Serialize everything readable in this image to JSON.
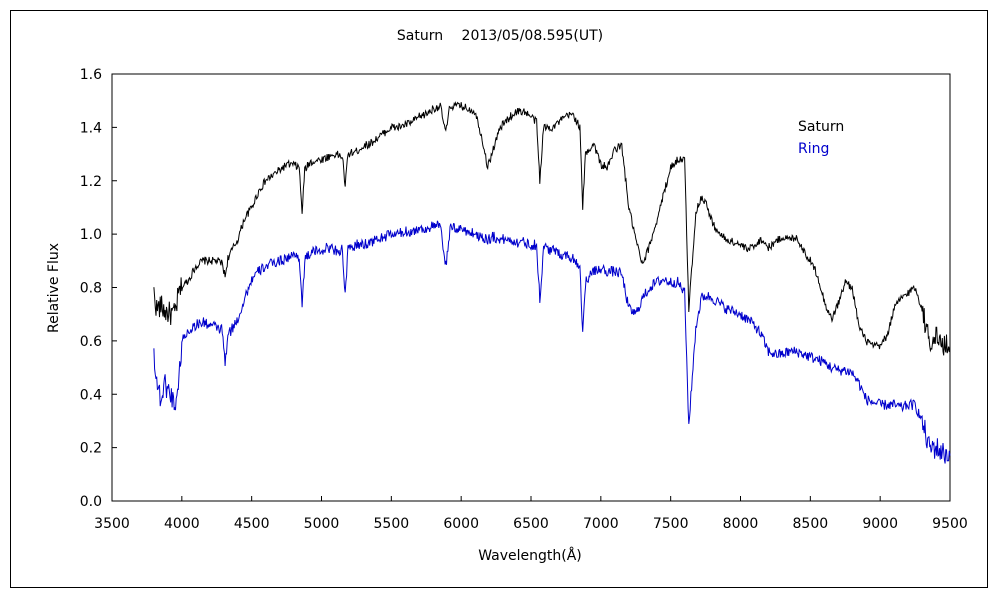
{
  "chart_data": {
    "type": "line",
    "title": "Saturn　 2013/05/08.595(UT)",
    "xlabel": "Wavelength(Å)",
    "ylabel": "Relative Flux",
    "xlim": [
      3500,
      9500
    ],
    "ylim": [
      0.0,
      1.6
    ],
    "xticks": [
      "3500",
      "4000",
      "4500",
      "5000",
      "5500",
      "6000",
      "6500",
      "7000",
      "7500",
      "8000",
      "8500",
      "9000",
      "9500"
    ],
    "yticks": [
      "0.0",
      "0.2",
      "0.4",
      "0.6",
      "0.8",
      "1.0",
      "1.2",
      "1.4",
      "1.6"
    ],
    "grid": false,
    "legend_position": "top-right",
    "series": [
      {
        "name": "Saturn",
        "color": "#000000",
        "points": [
          [
            3800,
            0.78
          ],
          [
            3820,
            0.72
          ],
          [
            3850,
            0.73
          ],
          [
            3880,
            0.71
          ],
          [
            3920,
            0.7
          ],
          [
            3950,
            0.7
          ],
          [
            3980,
            0.78
          ],
          [
            4000,
            0.8
          ],
          [
            4050,
            0.83
          ],
          [
            4100,
            0.88
          ],
          [
            4150,
            0.9
          ],
          [
            4200,
            0.9
          ],
          [
            4250,
            0.9
          ],
          [
            4290,
            0.89
          ],
          [
            4310,
            0.84
          ],
          [
            4330,
            0.91
          ],
          [
            4400,
            0.98
          ],
          [
            4450,
            1.06
          ],
          [
            4500,
            1.1
          ],
          [
            4550,
            1.16
          ],
          [
            4600,
            1.2
          ],
          [
            4650,
            1.22
          ],
          [
            4700,
            1.24
          ],
          [
            4750,
            1.26
          ],
          [
            4800,
            1.26
          ],
          [
            4840,
            1.25
          ],
          [
            4861,
            1.08
          ],
          [
            4880,
            1.24
          ],
          [
            4920,
            1.27
          ],
          [
            5000,
            1.28
          ],
          [
            5050,
            1.29
          ],
          [
            5100,
            1.3
          ],
          [
            5150,
            1.29
          ],
          [
            5170,
            1.18
          ],
          [
            5190,
            1.3
          ],
          [
            5250,
            1.31
          ],
          [
            5300,
            1.33
          ],
          [
            5350,
            1.34
          ],
          [
            5400,
            1.36
          ],
          [
            5450,
            1.38
          ],
          [
            5500,
            1.4
          ],
          [
            5550,
            1.4
          ],
          [
            5600,
            1.41
          ],
          [
            5650,
            1.42
          ],
          [
            5700,
            1.44
          ],
          [
            5750,
            1.45
          ],
          [
            5800,
            1.47
          ],
          [
            5850,
            1.48
          ],
          [
            5890,
            1.38
          ],
          [
            5920,
            1.48
          ],
          [
            6000,
            1.48
          ],
          [
            6050,
            1.47
          ],
          [
            6100,
            1.46
          ],
          [
            6150,
            1.36
          ],
          [
            6190,
            1.25
          ],
          [
            6230,
            1.32
          ],
          [
            6280,
            1.4
          ],
          [
            6350,
            1.44
          ],
          [
            6400,
            1.46
          ],
          [
            6450,
            1.46
          ],
          [
            6500,
            1.44
          ],
          [
            6540,
            1.42
          ],
          [
            6563,
            1.2
          ],
          [
            6590,
            1.4
          ],
          [
            6650,
            1.4
          ],
          [
            6700,
            1.42
          ],
          [
            6750,
            1.44
          ],
          [
            6800,
            1.45
          ],
          [
            6850,
            1.4
          ],
          [
            6870,
            1.1
          ],
          [
            6890,
            1.3
          ],
          [
            6950,
            1.34
          ],
          [
            7000,
            1.26
          ],
          [
            7050,
            1.25
          ],
          [
            7100,
            1.32
          ],
          [
            7150,
            1.33
          ],
          [
            7200,
            1.1
          ],
          [
            7250,
            0.98
          ],
          [
            7300,
            0.88
          ],
          [
            7350,
            0.96
          ],
          [
            7400,
            1.05
          ],
          [
            7450,
            1.15
          ],
          [
            7500,
            1.25
          ],
          [
            7550,
            1.28
          ],
          [
            7600,
            1.28
          ],
          [
            7630,
            0.72
          ],
          [
            7680,
            1.08
          ],
          [
            7720,
            1.14
          ],
          [
            7750,
            1.12
          ],
          [
            7800,
            1.04
          ],
          [
            7850,
            1.0
          ],
          [
            7900,
            0.98
          ],
          [
            8000,
            0.96
          ],
          [
            8050,
            0.94
          ],
          [
            8100,
            0.96
          ],
          [
            8150,
            0.98
          ],
          [
            8200,
            0.95
          ],
          [
            8250,
            0.97
          ],
          [
            8300,
            0.99
          ],
          [
            8350,
            0.98
          ],
          [
            8400,
            0.99
          ],
          [
            8450,
            0.94
          ],
          [
            8500,
            0.9
          ],
          [
            8550,
            0.85
          ],
          [
            8600,
            0.75
          ],
          [
            8650,
            0.68
          ],
          [
            8700,
            0.74
          ],
          [
            8750,
            0.82
          ],
          [
            8800,
            0.8
          ],
          [
            8850,
            0.65
          ],
          [
            8900,
            0.6
          ],
          [
            8950,
            0.58
          ],
          [
            9000,
            0.58
          ],
          [
            9050,
            0.62
          ],
          [
            9100,
            0.72
          ],
          [
            9150,
            0.76
          ],
          [
            9200,
            0.78
          ],
          [
            9250,
            0.8
          ],
          [
            9300,
            0.72
          ],
          [
            9350,
            0.6
          ],
          [
            9400,
            0.62
          ],
          [
            9450,
            0.58
          ],
          [
            9500,
            0.58
          ]
        ]
      },
      {
        "name": "Ring",
        "color": "#0000cc",
        "points": [
          [
            3800,
            0.56
          ],
          [
            3820,
            0.45
          ],
          [
            3850,
            0.38
          ],
          [
            3880,
            0.44
          ],
          [
            3920,
            0.4
          ],
          [
            3950,
            0.36
          ],
          [
            3980,
            0.45
          ],
          [
            4000,
            0.6
          ],
          [
            4050,
            0.64
          ],
          [
            4100,
            0.66
          ],
          [
            4150,
            0.67
          ],
          [
            4200,
            0.66
          ],
          [
            4250,
            0.65
          ],
          [
            4290,
            0.64
          ],
          [
            4310,
            0.51
          ],
          [
            4330,
            0.62
          ],
          [
            4400,
            0.68
          ],
          [
            4450,
            0.76
          ],
          [
            4500,
            0.83
          ],
          [
            4550,
            0.86
          ],
          [
            4600,
            0.88
          ],
          [
            4650,
            0.89
          ],
          [
            4700,
            0.9
          ],
          [
            4750,
            0.91
          ],
          [
            4800,
            0.92
          ],
          [
            4840,
            0.92
          ],
          [
            4861,
            0.73
          ],
          [
            4880,
            0.9
          ],
          [
            4920,
            0.93
          ],
          [
            5000,
            0.94
          ],
          [
            5050,
            0.95
          ],
          [
            5100,
            0.94
          ],
          [
            5150,
            0.94
          ],
          [
            5170,
            0.77
          ],
          [
            5190,
            0.94
          ],
          [
            5250,
            0.96
          ],
          [
            5300,
            0.96
          ],
          [
            5350,
            0.97
          ],
          [
            5400,
            0.98
          ],
          [
            5450,
            0.99
          ],
          [
            5500,
            1.0
          ],
          [
            5550,
            1.0
          ],
          [
            5600,
            1.01
          ],
          [
            5650,
            1.01
          ],
          [
            5700,
            1.02
          ],
          [
            5750,
            1.02
          ],
          [
            5800,
            1.03
          ],
          [
            5850,
            1.03
          ],
          [
            5890,
            0.88
          ],
          [
            5920,
            1.02
          ],
          [
            6000,
            1.02
          ],
          [
            6050,
            1.01
          ],
          [
            6100,
            1.0
          ],
          [
            6150,
            0.99
          ],
          [
            6190,
            0.98
          ],
          [
            6230,
            0.99
          ],
          [
            6280,
            0.98
          ],
          [
            6350,
            0.98
          ],
          [
            6400,
            0.97
          ],
          [
            6450,
            0.97
          ],
          [
            6500,
            0.96
          ],
          [
            6540,
            0.96
          ],
          [
            6563,
            0.75
          ],
          [
            6590,
            0.95
          ],
          [
            6650,
            0.94
          ],
          [
            6700,
            0.93
          ],
          [
            6750,
            0.92
          ],
          [
            6800,
            0.91
          ],
          [
            6850,
            0.88
          ],
          [
            6870,
            0.63
          ],
          [
            6890,
            0.82
          ],
          [
            6950,
            0.86
          ],
          [
            7000,
            0.87
          ],
          [
            7050,
            0.86
          ],
          [
            7100,
            0.86
          ],
          [
            7150,
            0.85
          ],
          [
            7200,
            0.72
          ],
          [
            7250,
            0.7
          ],
          [
            7300,
            0.76
          ],
          [
            7350,
            0.8
          ],
          [
            7400,
            0.82
          ],
          [
            7450,
            0.83
          ],
          [
            7500,
            0.82
          ],
          [
            7550,
            0.82
          ],
          [
            7600,
            0.78
          ],
          [
            7630,
            0.28
          ],
          [
            7680,
            0.65
          ],
          [
            7720,
            0.76
          ],
          [
            7750,
            0.77
          ],
          [
            7800,
            0.76
          ],
          [
            7850,
            0.74
          ],
          [
            7900,
            0.72
          ],
          [
            8000,
            0.7
          ],
          [
            8050,
            0.68
          ],
          [
            8100,
            0.66
          ],
          [
            8150,
            0.62
          ],
          [
            8200,
            0.56
          ],
          [
            8250,
            0.55
          ],
          [
            8300,
            0.55
          ],
          [
            8350,
            0.56
          ],
          [
            8400,
            0.56
          ],
          [
            8450,
            0.55
          ],
          [
            8500,
            0.54
          ],
          [
            8550,
            0.53
          ],
          [
            8600,
            0.52
          ],
          [
            8650,
            0.5
          ],
          [
            8700,
            0.49
          ],
          [
            8750,
            0.49
          ],
          [
            8800,
            0.48
          ],
          [
            8850,
            0.44
          ],
          [
            8900,
            0.38
          ],
          [
            8950,
            0.37
          ],
          [
            9000,
            0.36
          ],
          [
            9050,
            0.36
          ],
          [
            9100,
            0.36
          ],
          [
            9150,
            0.35
          ],
          [
            9200,
            0.36
          ],
          [
            9250,
            0.36
          ],
          [
            9300,
            0.3
          ],
          [
            9350,
            0.2
          ],
          [
            9400,
            0.2
          ],
          [
            9450,
            0.18
          ],
          [
            9500,
            0.17
          ]
        ]
      }
    ]
  }
}
